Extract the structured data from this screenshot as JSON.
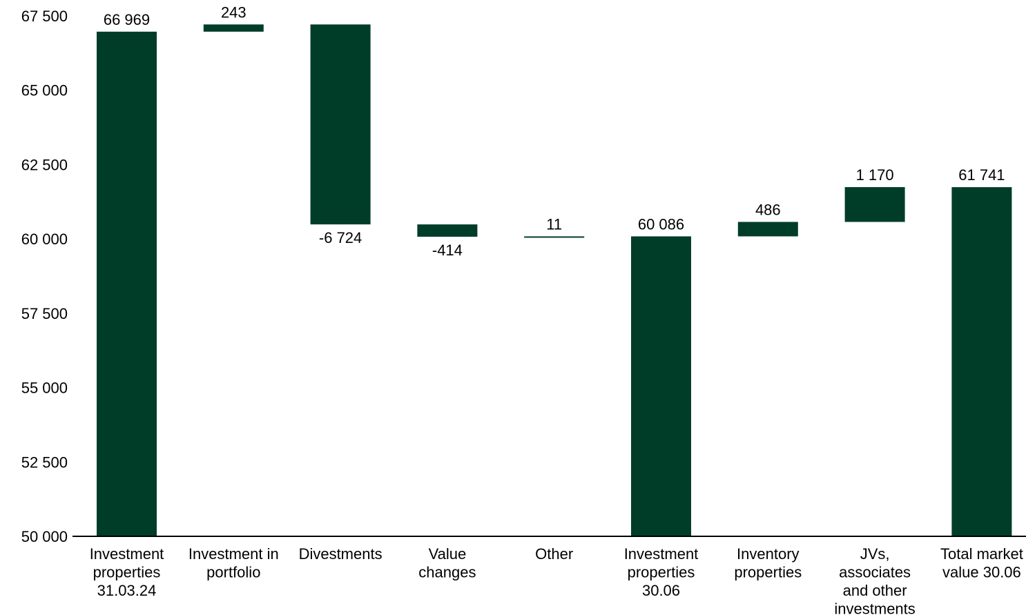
{
  "chart_data": {
    "type": "waterfall",
    "color": "#003D28",
    "ylim": [
      50000,
      67500
    ],
    "yticks": [
      50000,
      52500,
      55000,
      57500,
      60000,
      62500,
      65000,
      67500
    ],
    "ytick_labels": [
      "50 000",
      "52 500",
      "55 000",
      "57 500",
      "60 000",
      "62 500",
      "65 000",
      "67 500"
    ],
    "grid": false,
    "legend": "none",
    "bars": [
      {
        "category": [
          "Investment",
          "properties",
          "31.03.24"
        ],
        "kind": "total",
        "start": 50000,
        "end": 66969,
        "value": 66969,
        "label": "66 969",
        "label_pos": "above"
      },
      {
        "category": [
          "Investment in",
          "portfolio"
        ],
        "kind": "delta",
        "start": 66969,
        "end": 67212,
        "value": 243,
        "label": "243",
        "label_pos": "above"
      },
      {
        "category": [
          "Divestments"
        ],
        "kind": "delta",
        "start": 67212,
        "end": 60488,
        "value": -6724,
        "label": "-6 724",
        "label_pos": "below"
      },
      {
        "category": [
          "Value",
          "changes"
        ],
        "kind": "delta",
        "start": 60488,
        "end": 60074,
        "value": -414,
        "label": "-414",
        "label_pos": "below"
      },
      {
        "category": [
          "Other"
        ],
        "kind": "delta",
        "start": 60074,
        "end": 60086,
        "value": 11,
        "label": "11",
        "label_pos": "above"
      },
      {
        "category": [
          "Investment",
          "properties",
          "30.06"
        ],
        "kind": "total",
        "start": 50000,
        "end": 60086,
        "value": 60086,
        "label": "60 086",
        "label_pos": "above"
      },
      {
        "category": [
          "Inventory",
          "properties"
        ],
        "kind": "delta",
        "start": 60086,
        "end": 60572,
        "value": 486,
        "label": "486",
        "label_pos": "above"
      },
      {
        "category": [
          "JVs,",
          "associates",
          "and other",
          "investments"
        ],
        "kind": "delta",
        "start": 60572,
        "end": 61742,
        "value": 1170,
        "label": "1 170",
        "label_pos": "above"
      },
      {
        "category": [
          "Total market",
          "value 30.06"
        ],
        "kind": "total",
        "start": 50000,
        "end": 61741,
        "value": 61741,
        "label": "61 741",
        "label_pos": "above"
      }
    ]
  }
}
